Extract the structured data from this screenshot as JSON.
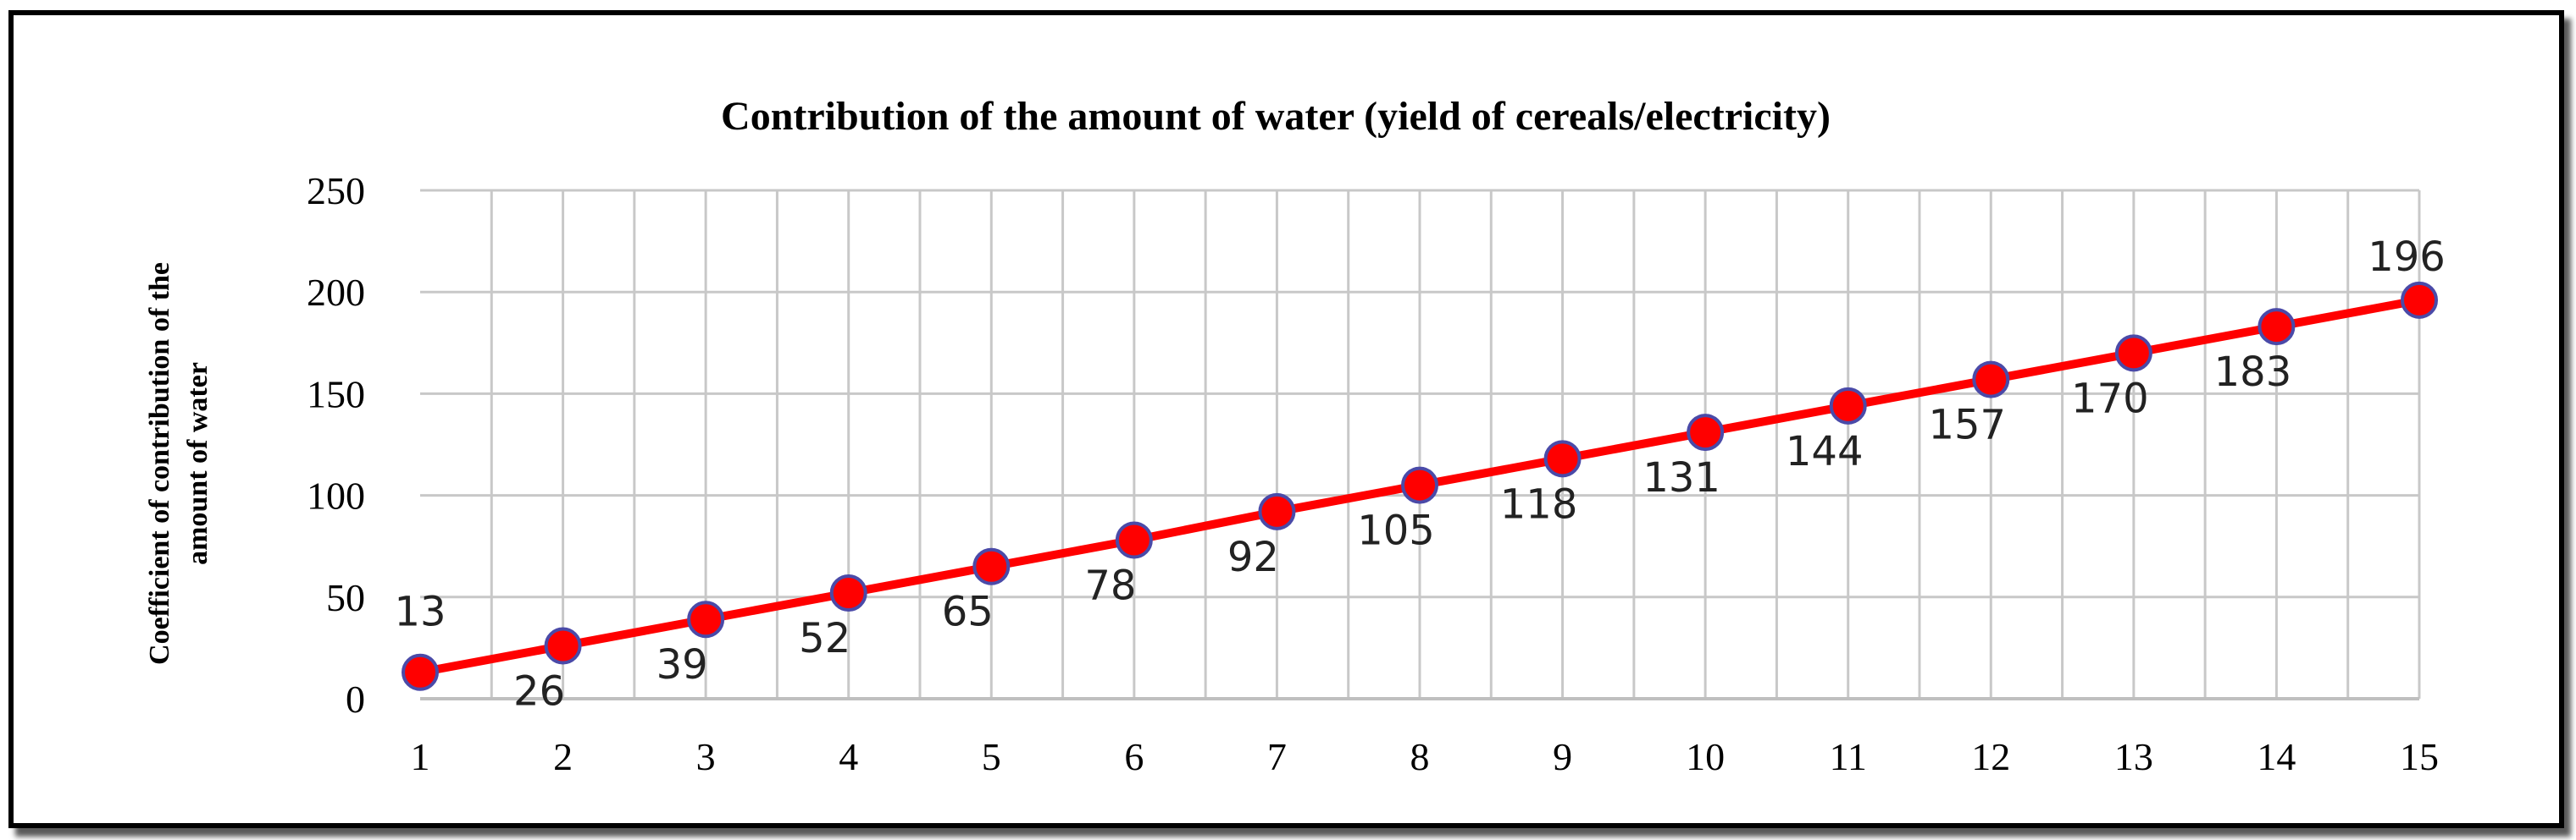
{
  "colors": {
    "line": "#ff0000",
    "marker_fill": "#ff0000",
    "marker_stroke": "#4a4aa8",
    "grid": "#c8c8c8",
    "frame": "#000000"
  },
  "chart_data": {
    "type": "line",
    "title": "Contribution of the amount of water (yield of cereals/electricity)",
    "xlabel": "",
    "ylabel_lines": [
      "Coefficient of contribution of the",
      "amount of water"
    ],
    "categories": [
      "1",
      "2",
      "3",
      "4",
      "5",
      "6",
      "7",
      "8",
      "9",
      "10",
      "11",
      "12",
      "13",
      "14",
      "15"
    ],
    "yticks": [
      "0",
      "50",
      "100",
      "150",
      "200",
      "250"
    ],
    "ylim": [
      0,
      250
    ],
    "grid": true,
    "legend": "none",
    "series": [
      {
        "values": [
          13,
          26,
          39,
          52,
          65,
          78,
          92,
          105,
          118,
          131,
          144,
          157,
          170,
          183,
          196
        ],
        "labels": [
          "13",
          "26",
          "39",
          "52",
          "65",
          "78",
          "92",
          "105",
          "118",
          "131",
          "144",
          "157",
          "170",
          "183",
          "196"
        ]
      }
    ]
  }
}
